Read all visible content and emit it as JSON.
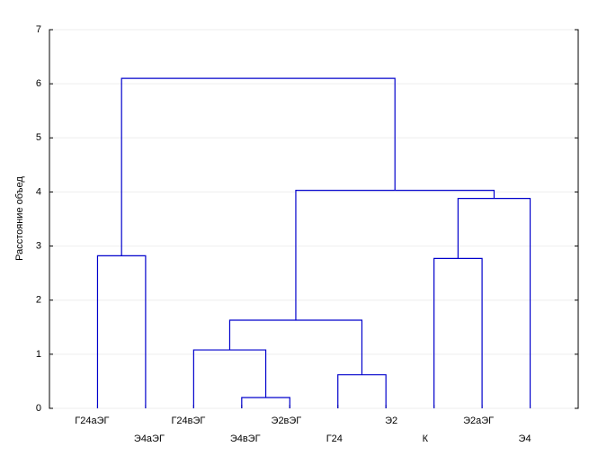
{
  "chart_data": {
    "type": "dendrogram",
    "y_label": "Расстояние объед",
    "categories": [
      "Г24аЭГ",
      "Э4аЭГ",
      "Г24вЭГ",
      "Э4вЭГ",
      "Э2вЭГ",
      "Г24",
      "Э2",
      "К",
      "Э2аЭГ",
      "Э4"
    ],
    "merges": [
      {
        "a": 0,
        "b": 1,
        "height": 2.82
      },
      {
        "a": 3,
        "b": 4,
        "height": 0.2
      },
      {
        "a": 2,
        "b": 11,
        "height": 1.08
      },
      {
        "a": 5,
        "b": 6,
        "height": 0.62
      },
      {
        "a": 12,
        "b": 13,
        "height": 1.63
      },
      {
        "a": 7,
        "b": 8,
        "height": 2.77
      },
      {
        "a": 15,
        "b": 9,
        "height": 3.88
      },
      {
        "a": 14,
        "b": 16,
        "height": 4.03
      },
      {
        "a": 10,
        "b": 17,
        "height": 6.1
      }
    ],
    "color": "#0000cc",
    "ylim": [
      0,
      7
    ],
    "yticks": [
      0,
      1,
      2,
      3,
      4,
      5,
      6,
      7
    ],
    "grid": true
  }
}
